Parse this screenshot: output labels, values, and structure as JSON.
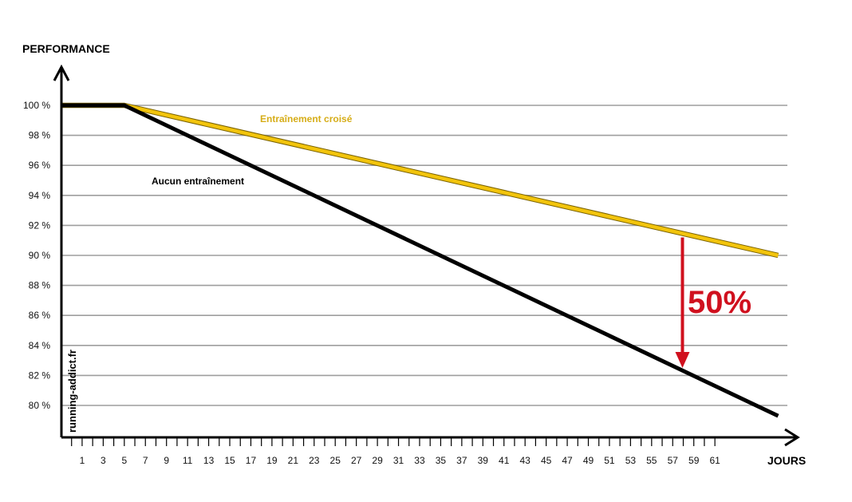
{
  "chart_data": {
    "type": "line",
    "ylabel": "PERFORMANCE",
    "xlabel": "JOURS",
    "watermark": "running-addict.fr",
    "ylim": [
      78,
      100
    ],
    "xlim": [
      -1,
      67
    ],
    "grid": true,
    "y_ticks": [
      {
        "value": 100,
        "label": "100 %"
      },
      {
        "value": 98,
        "label": "98 %"
      },
      {
        "value": 96,
        "label": "96 %"
      },
      {
        "value": 94,
        "label": "94 %"
      },
      {
        "value": 92,
        "label": "92 %"
      },
      {
        "value": 90,
        "label": "90 %"
      },
      {
        "value": 88,
        "label": "88 %"
      },
      {
        "value": 86,
        "label": "86 %"
      },
      {
        "value": 84,
        "label": "84 %"
      },
      {
        "value": 82,
        "label": "82 %"
      },
      {
        "value": 80,
        "label": "80 %"
      }
    ],
    "x_ticks": [
      1,
      3,
      5,
      7,
      9,
      11,
      13,
      15,
      17,
      19,
      21,
      23,
      25,
      27,
      29,
      31,
      33,
      35,
      37,
      39,
      41,
      43,
      45,
      47,
      49,
      51,
      53,
      55,
      57,
      59,
      61
    ],
    "x_tick_labels": [
      "1",
      "3",
      "5",
      "7",
      "9",
      "11",
      "13",
      "15",
      "17",
      "19",
      "21",
      "23",
      "25",
      "27",
      "29",
      "31",
      "33",
      "35",
      "37",
      "39",
      "41",
      "43",
      "45",
      "47",
      "49",
      "51",
      "53",
      "55",
      "57",
      "59",
      "61"
    ],
    "series": [
      {
        "name": "Entraînement croisé",
        "color": "#f2c40c",
        "x": [
          -1,
          5,
          67
        ],
        "y": [
          100,
          100,
          90
        ]
      },
      {
        "name": "Aucun entraînement",
        "color": "#000000",
        "x": [
          -1,
          5,
          67
        ],
        "y": [
          100,
          100,
          79.3
        ]
      }
    ],
    "annotation": {
      "text": "50%",
      "color": "#d0101e",
      "x": 58,
      "y_from": 91.2,
      "y_to": 82.5
    }
  }
}
